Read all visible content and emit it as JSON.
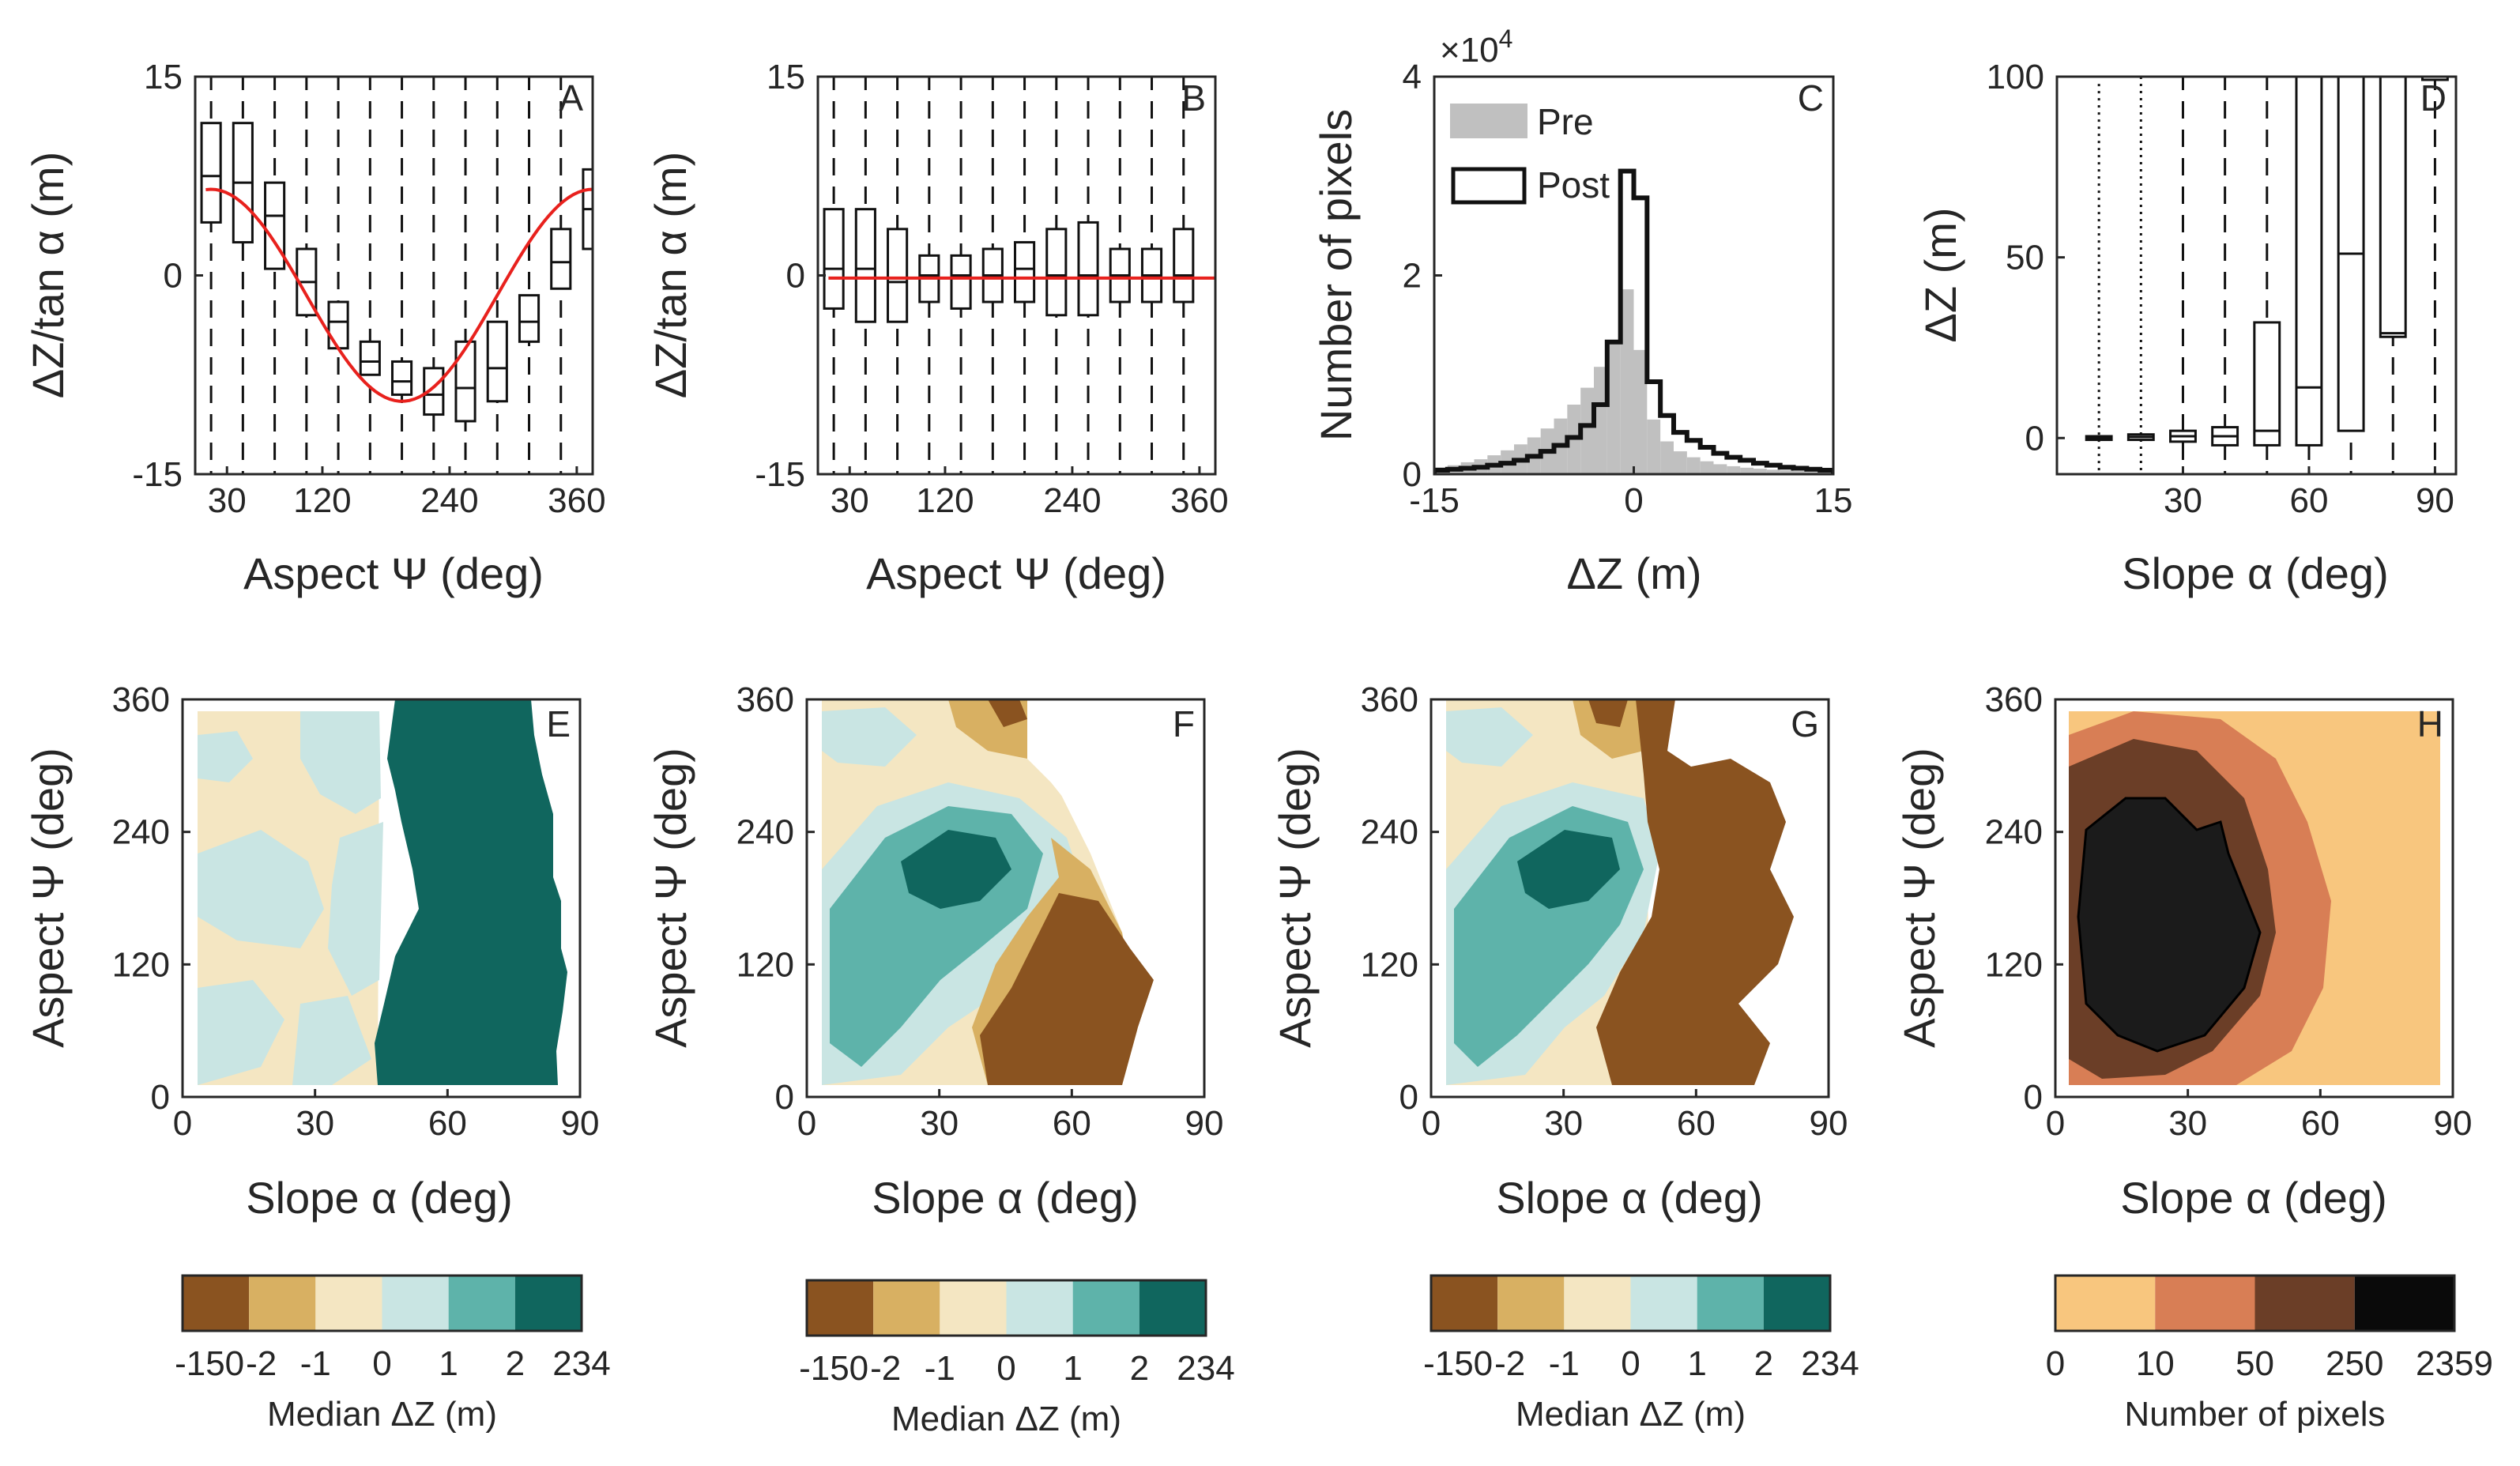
{
  "figure": {
    "colors": {
      "median_scale": [
        "#8a5320",
        "#d8b062",
        "#f4e6c2",
        "#c9e5e3",
        "#5eb3aa",
        "#10665e"
      ],
      "count_scale": [
        "#f8c67e",
        "#d87e55",
        "#6b3e27",
        "#0a0a0a"
      ],
      "histogram_pre": "#c0c0c0",
      "histogram_post": "#111111",
      "fit_line": "#e8211d",
      "box": "#111111"
    },
    "colorbars": [
      {
        "panel": "E",
        "label": "Median  ΔZ (m)",
        "ticks": [
          "-150",
          "-2",
          "-1",
          "0",
          "1",
          "2",
          "234"
        ]
      },
      {
        "panel": "F",
        "label": "Median  ΔZ (m)",
        "ticks": [
          "-150",
          "-2",
          "-1",
          "0",
          "1",
          "2",
          "234"
        ]
      },
      {
        "panel": "G",
        "label": "Median  ΔZ (m)",
        "ticks": [
          "-150",
          "-2",
          "-1",
          "0",
          "1",
          "2",
          "234"
        ]
      },
      {
        "panel": "H",
        "label": "Number of pixels",
        "ticks": [
          "0",
          "10",
          "50",
          "250",
          "2359"
        ]
      }
    ]
  },
  "chart_data": [
    {
      "panel": "A",
      "type": "box",
      "xlabel": "Aspect   Ψ (deg)",
      "ylabel": "ΔZ/tan α (m)",
      "xlim": [
        0,
        375
      ],
      "ylim": [
        -15,
        15
      ],
      "xticks": [
        30,
        120,
        240,
        360
      ],
      "xtick_labels": [
        "30",
        "120",
        "240",
        "360"
      ],
      "yticks": [
        15,
        0,
        -15
      ],
      "ytick_labels": [
        "15",
        "0",
        "-15"
      ],
      "boxes": [
        {
          "x": 15,
          "q1": 4,
          "median": 7.5,
          "q3": 11.5
        },
        {
          "x": 45,
          "q1": 2.5,
          "median": 7,
          "q3": 11.5
        },
        {
          "x": 75,
          "q1": 0.5,
          "median": 4.5,
          "q3": 7
        },
        {
          "x": 105,
          "q1": -3,
          "median": -0.5,
          "q3": 2
        },
        {
          "x": 135,
          "q1": -5.5,
          "median": -3.5,
          "q3": -2
        },
        {
          "x": 165,
          "q1": -7.5,
          "median": -6.5,
          "q3": -5
        },
        {
          "x": 195,
          "q1": -9,
          "median": -8,
          "q3": -6.5
        },
        {
          "x": 225,
          "q1": -10.5,
          "median": -9,
          "q3": -7
        },
        {
          "x": 255,
          "q1": -11,
          "median": -8.5,
          "q3": -5
        },
        {
          "x": 285,
          "q1": -9.5,
          "median": -7,
          "q3": -3.5
        },
        {
          "x": 315,
          "q1": -5,
          "median": -3.5,
          "q3": -1.5
        },
        {
          "x": 345,
          "q1": -1,
          "median": 1,
          "q3": 3.5
        },
        {
          "x": 375,
          "q1": 2,
          "median": 5,
          "q3": 8
        }
      ],
      "fit": {
        "type": "cosine",
        "amplitude": 8,
        "offset": -1.5,
        "phase_deg": 15
      }
    },
    {
      "panel": "B",
      "type": "box",
      "xlabel": "Aspect   Ψ (deg)",
      "ylabel": "ΔZ/tan α (m)",
      "xlim": [
        0,
        375
      ],
      "ylim": [
        -15,
        15
      ],
      "xticks": [
        30,
        120,
        240,
        360
      ],
      "xtick_labels": [
        "30",
        "120",
        "240",
        "360"
      ],
      "yticks": [
        15,
        0,
        -15
      ],
      "ytick_labels": [
        "15",
        "0",
        "-15"
      ],
      "boxes": [
        {
          "x": 15,
          "q1": -2.5,
          "median": 0.5,
          "q3": 5
        },
        {
          "x": 45,
          "q1": -3.5,
          "median": 0.5,
          "q3": 5
        },
        {
          "x": 75,
          "q1": -3.5,
          "median": -0.5,
          "q3": 3.5
        },
        {
          "x": 105,
          "q1": -2,
          "median": 0,
          "q3": 1.5
        },
        {
          "x": 135,
          "q1": -2.5,
          "median": 0,
          "q3": 1.5
        },
        {
          "x": 165,
          "q1": -2,
          "median": 0,
          "q3": 2
        },
        {
          "x": 195,
          "q1": -2,
          "median": 0.5,
          "q3": 2.5
        },
        {
          "x": 225,
          "q1": -3,
          "median": 0,
          "q3": 3.5
        },
        {
          "x": 255,
          "q1": -3,
          "median": 0,
          "q3": 4
        },
        {
          "x": 285,
          "q1": -2,
          "median": 0,
          "q3": 2
        },
        {
          "x": 315,
          "q1": -2,
          "median": 0,
          "q3": 2
        },
        {
          "x": 345,
          "q1": -2,
          "median": 0,
          "q3": 3.5
        }
      ],
      "fit": {
        "type": "line",
        "value": -0.2
      }
    },
    {
      "panel": "C",
      "type": "histogram",
      "xlabel": "ΔZ (m)",
      "ylabel": "Number of pixels",
      "xlim": [
        -15,
        15
      ],
      "ylim": [
        0,
        40000
      ],
      "y_exponent_label": "×10",
      "y_exponent_power": "4",
      "xticks": [
        -15,
        0,
        15
      ],
      "xtick_labels": [
        "-15",
        "0",
        "15"
      ],
      "yticks": [
        0,
        20000,
        40000
      ],
      "ytick_labels": [
        "0",
        "2",
        "4"
      ],
      "bin_width": 1,
      "bin_centers": [
        -14.5,
        -13.5,
        -12.5,
        -11.5,
        -10.5,
        -9.5,
        -8.5,
        -7.5,
        -6.5,
        -5.5,
        -4.5,
        -3.5,
        -2.5,
        -1.5,
        -0.5,
        0.5,
        1.5,
        2.5,
        3.5,
        4.5,
        5.5,
        6.5,
        7.5,
        8.5,
        9.5,
        10.5,
        11.5,
        12.5,
        13.5,
        14.5
      ],
      "series": [
        {
          "name": "Pre",
          "style": "filled",
          "values": [
            700,
            900,
            1200,
            1500,
            1900,
            2400,
            3000,
            3700,
            4600,
            5600,
            7000,
            8700,
            10800,
            13500,
            18600,
            12500,
            5500,
            3300,
            2300,
            1700,
            1300,
            1000,
            800,
            650,
            550,
            450,
            380,
            320,
            270,
            230
          ]
        },
        {
          "name": "Post",
          "style": "step",
          "values": [
            400,
            500,
            600,
            700,
            900,
            1100,
            1400,
            1800,
            2300,
            2900,
            3700,
            4900,
            7000,
            13300,
            30500,
            27800,
            9300,
            5900,
            4200,
            3400,
            2700,
            2100,
            1700,
            1400,
            1100,
            900,
            700,
            600,
            500,
            400
          ]
        }
      ]
    },
    {
      "panel": "D",
      "type": "box",
      "xlabel": "Slope  α (deg)",
      "ylabel": "ΔZ (m)",
      "xlim": [
        0,
        95
      ],
      "ylim": [
        -10,
        100
      ],
      "xticks": [
        30,
        60,
        90
      ],
      "xtick_labels": [
        "30",
        "60",
        "90"
      ],
      "yticks": [
        100,
        50,
        0
      ],
      "ytick_labels": [
        "100",
        "50",
        "0"
      ],
      "boxes": [
        {
          "x": 10,
          "q1": -0.5,
          "median": 0,
          "q3": 0.5,
          "outliers_to": 98
        },
        {
          "x": 20,
          "q1": -0.5,
          "median": 0.3,
          "q3": 1,
          "outliers_to": 100
        },
        {
          "x": 30,
          "q1": -1,
          "median": 0.5,
          "q3": 2
        },
        {
          "x": 40,
          "q1": -2,
          "median": 0.5,
          "q3": 3
        },
        {
          "x": 50,
          "q1": -2,
          "median": 2,
          "q3": 32
        },
        {
          "x": 60,
          "q1": -2,
          "median": 14,
          "q3": 100
        },
        {
          "x": 70,
          "q1": 2,
          "median": 51,
          "q3": 100
        },
        {
          "x": 80,
          "q1": 28,
          "median": 29,
          "q3": 100
        },
        {
          "x": 90,
          "q1": 100,
          "median": 100,
          "q3": 100
        }
      ]
    },
    {
      "panel": "E",
      "type": "heatmap",
      "xlabel": "Slope  α (deg)",
      "ylabel": "Aspect   Ψ (deg)",
      "xlim": [
        0,
        90
      ],
      "ylim": [
        0,
        360
      ],
      "xticks": [
        0,
        30,
        60,
        90
      ],
      "xtick_labels": [
        "0",
        "30",
        "60",
        "90"
      ],
      "yticks": [
        0,
        120,
        240,
        360
      ],
      "ytick_labels": [
        "0",
        "120",
        "240",
        "360"
      ],
      "color_scale": "median",
      "value_boundaries": [
        -150,
        -2,
        -1,
        0,
        1,
        2,
        234
      ],
      "classes": [
        "-150 to -2",
        "-2 to -1",
        "-1 to 0",
        "0 to 1",
        "1 to 2",
        "2 to 234"
      ]
    },
    {
      "panel": "F",
      "type": "heatmap",
      "xlabel": "Slope  α (deg)",
      "ylabel": "Aspect   Ψ (deg)",
      "xlim": [
        0,
        90
      ],
      "ylim": [
        0,
        360
      ],
      "xticks": [
        0,
        30,
        60,
        90
      ],
      "xtick_labels": [
        "0",
        "30",
        "60",
        "90"
      ],
      "yticks": [
        0,
        120,
        240,
        360
      ],
      "ytick_labels": [
        "0",
        "120",
        "240",
        "360"
      ],
      "color_scale": "median",
      "value_boundaries": [
        -150,
        -2,
        -1,
        0,
        1,
        2,
        234
      ]
    },
    {
      "panel": "G",
      "type": "heatmap",
      "xlabel": "Slope  α (deg)",
      "ylabel": "Aspect   Ψ (deg)",
      "xlim": [
        0,
        90
      ],
      "ylim": [
        0,
        360
      ],
      "xticks": [
        0,
        30,
        60,
        90
      ],
      "xtick_labels": [
        "0",
        "30",
        "60",
        "90"
      ],
      "yticks": [
        0,
        120,
        240,
        360
      ],
      "ytick_labels": [
        "0",
        "120",
        "240",
        "360"
      ],
      "color_scale": "median",
      "value_boundaries": [
        -150,
        -2,
        -1,
        0,
        1,
        2,
        234
      ]
    },
    {
      "panel": "H",
      "type": "heatmap",
      "xlabel": "Slope  α (deg)",
      "ylabel": "Aspect   Ψ (deg)",
      "xlim": [
        0,
        90
      ],
      "ylim": [
        0,
        360
      ],
      "xticks": [
        0,
        30,
        60,
        90
      ],
      "xtick_labels": [
        "0",
        "30",
        "60",
        "90"
      ],
      "yticks": [
        0,
        120,
        240,
        360
      ],
      "ytick_labels": [
        "0",
        "120",
        "240",
        "360"
      ],
      "color_scale": "count",
      "value_boundaries": [
        0,
        10,
        50,
        250,
        2359
      ]
    }
  ]
}
